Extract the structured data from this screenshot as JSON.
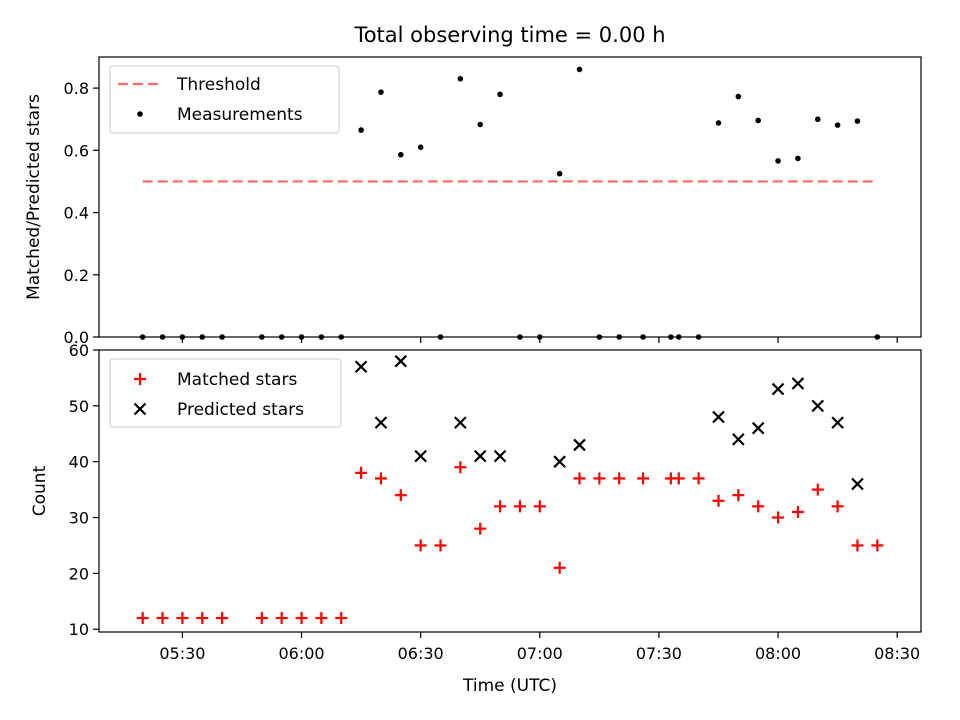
{
  "chart_data": [
    {
      "type": "scatter",
      "title": "Total observing time = 0.00 h",
      "ylabel": "Matched/Predicted stars",
      "xlabel": "",
      "ylim": [
        0,
        0.9
      ],
      "yticks": [
        0.0,
        0.2,
        0.4,
        0.6,
        0.8
      ],
      "ytick_labels": [
        "0.0",
        "0.2",
        "0.4",
        "0.6",
        "0.8"
      ],
      "legend_position": "top-left",
      "threshold": {
        "name": "Threshold",
        "y": 0.5,
        "x_start": "05:20",
        "x_end": "08:25",
        "color": "#ff6666"
      },
      "series": [
        {
          "name": "Measurements",
          "color": "#000000",
          "points": [
            {
              "x": "05:20",
              "y": 0
            },
            {
              "x": "05:25",
              "y": 0
            },
            {
              "x": "05:30",
              "y": 0
            },
            {
              "x": "05:35",
              "y": 0
            },
            {
              "x": "05:40",
              "y": 0
            },
            {
              "x": "05:50",
              "y": 0
            },
            {
              "x": "05:55",
              "y": 0
            },
            {
              "x": "06:00",
              "y": 0
            },
            {
              "x": "06:05",
              "y": 0
            },
            {
              "x": "06:10",
              "y": 0
            },
            {
              "x": "06:15",
              "y": 0.665
            },
            {
              "x": "06:20",
              "y": 0.787
            },
            {
              "x": "06:25",
              "y": 0.586
            },
            {
              "x": "06:30",
              "y": 0.61
            },
            {
              "x": "06:35",
              "y": 0
            },
            {
              "x": "06:40",
              "y": 0.83
            },
            {
              "x": "06:45",
              "y": 0.683
            },
            {
              "x": "06:50",
              "y": 0.78
            },
            {
              "x": "06:55",
              "y": 0
            },
            {
              "x": "07:00",
              "y": 0
            },
            {
              "x": "07:05",
              "y": 0.525
            },
            {
              "x": "07:10",
              "y": 0.86
            },
            {
              "x": "07:15",
              "y": 0
            },
            {
              "x": "07:20",
              "y": 0
            },
            {
              "x": "07:26",
              "y": 0
            },
            {
              "x": "07:33",
              "y": 0
            },
            {
              "x": "07:35",
              "y": 0
            },
            {
              "x": "07:40",
              "y": 0
            },
            {
              "x": "07:45",
              "y": 0.688
            },
            {
              "x": "07:50",
              "y": 0.773
            },
            {
              "x": "07:55",
              "y": 0.696
            },
            {
              "x": "08:00",
              "y": 0.566
            },
            {
              "x": "08:05",
              "y": 0.574
            },
            {
              "x": "08:10",
              "y": 0.7
            },
            {
              "x": "08:15",
              "y": 0.681
            },
            {
              "x": "08:20",
              "y": 0.694
            },
            {
              "x": "08:25",
              "y": 0
            }
          ]
        }
      ]
    },
    {
      "type": "scatter",
      "title": "",
      "ylabel": "Count",
      "xlabel": "Time (UTC)",
      "ylim": [
        9.5,
        60
      ],
      "yticks": [
        10,
        20,
        30,
        40,
        50,
        60
      ],
      "ytick_labels": [
        "10",
        "20",
        "30",
        "40",
        "50",
        "60"
      ],
      "xticks": [
        "05:30",
        "06:00",
        "06:30",
        "07:00",
        "07:30",
        "08:00",
        "08:30"
      ],
      "legend_position": "top-left",
      "series": [
        {
          "name": "Matched stars",
          "color": "#ff0000",
          "marker": "plus",
          "points": [
            {
              "x": "05:20",
              "y": 12
            },
            {
              "x": "05:25",
              "y": 12
            },
            {
              "x": "05:30",
              "y": 12
            },
            {
              "x": "05:35",
              "y": 12
            },
            {
              "x": "05:40",
              "y": 12
            },
            {
              "x": "05:50",
              "y": 12
            },
            {
              "x": "05:55",
              "y": 12
            },
            {
              "x": "06:00",
              "y": 12
            },
            {
              "x": "06:05",
              "y": 12
            },
            {
              "x": "06:10",
              "y": 12
            },
            {
              "x": "06:15",
              "y": 38
            },
            {
              "x": "06:20",
              "y": 37
            },
            {
              "x": "06:25",
              "y": 34
            },
            {
              "x": "06:30",
              "y": 25
            },
            {
              "x": "06:35",
              "y": 25
            },
            {
              "x": "06:40",
              "y": 39
            },
            {
              "x": "06:45",
              "y": 28
            },
            {
              "x": "06:50",
              "y": 32
            },
            {
              "x": "06:55",
              "y": 32
            },
            {
              "x": "07:00",
              "y": 32
            },
            {
              "x": "07:05",
              "y": 21
            },
            {
              "x": "07:10",
              "y": 37
            },
            {
              "x": "07:15",
              "y": 37
            },
            {
              "x": "07:20",
              "y": 37
            },
            {
              "x": "07:26",
              "y": 37
            },
            {
              "x": "07:33",
              "y": 37
            },
            {
              "x": "07:35",
              "y": 37
            },
            {
              "x": "07:40",
              "y": 37
            },
            {
              "x": "07:45",
              "y": 33
            },
            {
              "x": "07:50",
              "y": 34
            },
            {
              "x": "07:55",
              "y": 32
            },
            {
              "x": "08:00",
              "y": 30
            },
            {
              "x": "08:05",
              "y": 31
            },
            {
              "x": "08:10",
              "y": 35
            },
            {
              "x": "08:15",
              "y": 32
            },
            {
              "x": "08:20",
              "y": 25
            },
            {
              "x": "08:25",
              "y": 25
            }
          ]
        },
        {
          "name": "Predicted stars",
          "color": "#000000",
          "marker": "x",
          "points": [
            {
              "x": "06:15",
              "y": 57
            },
            {
              "x": "06:20",
              "y": 47
            },
            {
              "x": "06:25",
              "y": 58
            },
            {
              "x": "06:30",
              "y": 41
            },
            {
              "x": "06:40",
              "y": 47
            },
            {
              "x": "06:45",
              "y": 41
            },
            {
              "x": "06:50",
              "y": 41
            },
            {
              "x": "07:05",
              "y": 40
            },
            {
              "x": "07:10",
              "y": 43
            },
            {
              "x": "07:45",
              "y": 48
            },
            {
              "x": "07:50",
              "y": 44
            },
            {
              "x": "07:55",
              "y": 46
            },
            {
              "x": "08:00",
              "y": 53
            },
            {
              "x": "08:05",
              "y": 54
            },
            {
              "x": "08:10",
              "y": 50
            },
            {
              "x": "08:15",
              "y": 47
            },
            {
              "x": "08:20",
              "y": 36
            }
          ]
        }
      ]
    }
  ]
}
